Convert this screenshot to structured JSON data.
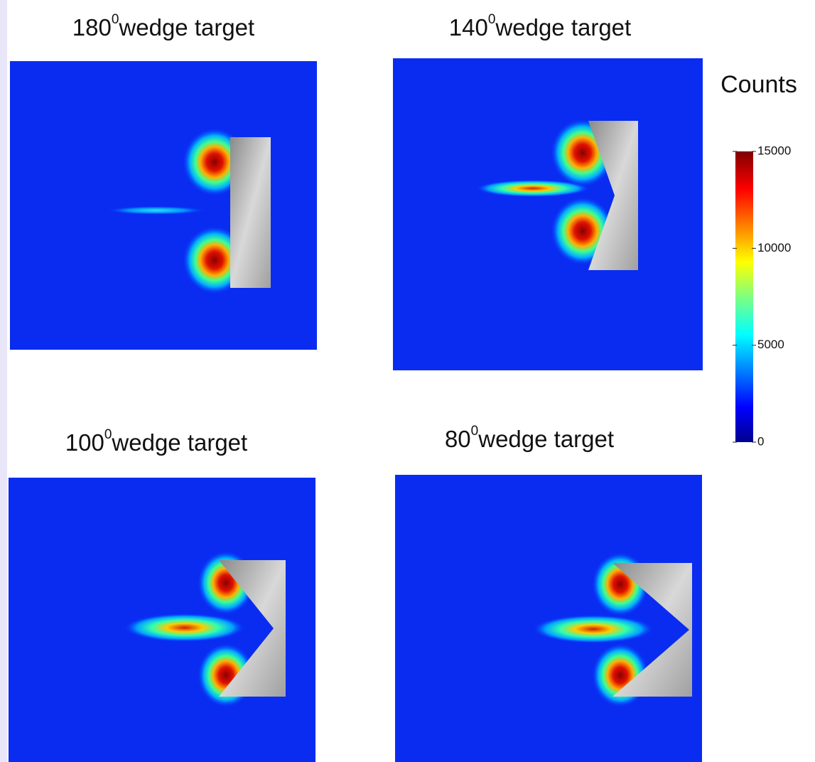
{
  "panels": [
    {
      "angle": "180",
      "superscript": "0",
      "title": "wedge target"
    },
    {
      "angle": "140",
      "superscript": "0",
      "title": "wedge target"
    },
    {
      "angle": "100",
      "superscript": "0",
      "title": "wedge target"
    },
    {
      "angle": "80",
      "superscript": "0",
      "title": "wedge target"
    }
  ],
  "colorbar": {
    "label": "Counts",
    "lim": [
      0,
      15000
    ],
    "ticks": [
      0,
      5000,
      10000,
      15000
    ]
  }
}
